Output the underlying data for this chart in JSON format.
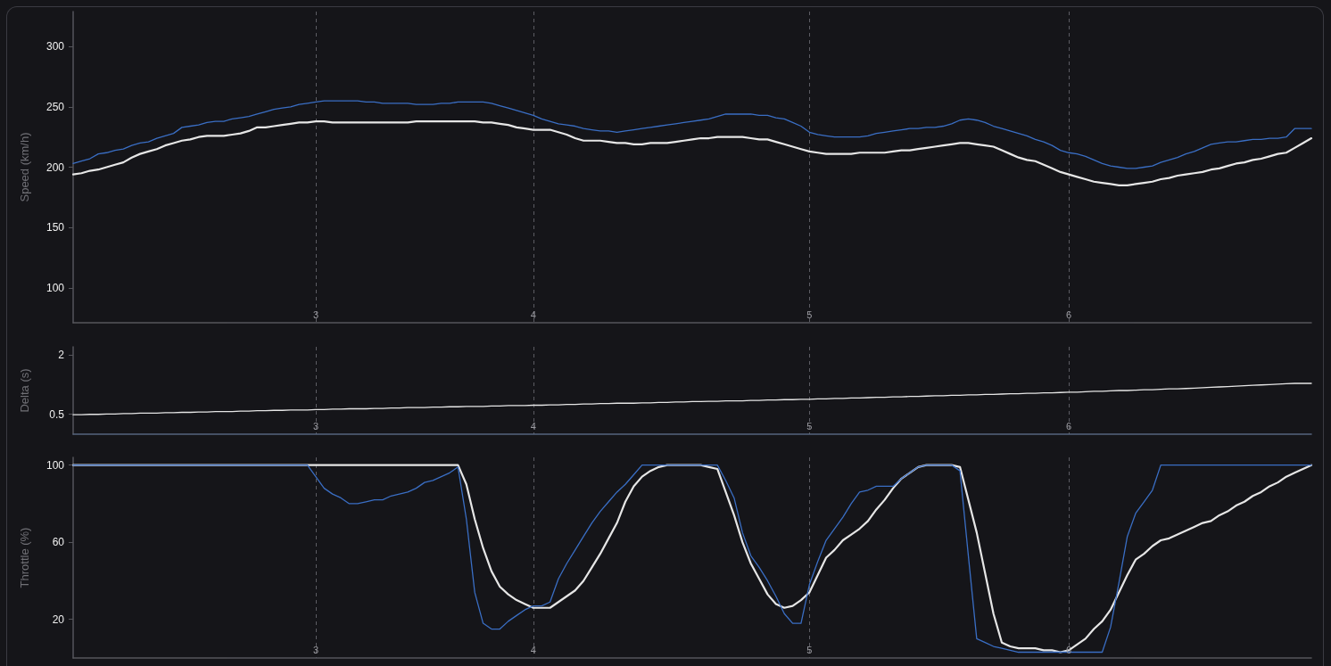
{
  "chart_data": [
    {
      "type": "line",
      "ylabel": "Speed (km/h)",
      "categories": [
        null,
        null,
        null,
        null,
        null,
        null,
        null,
        null,
        null,
        null,
        null,
        null,
        null,
        null,
        null,
        null,
        null,
        null,
        null,
        null,
        null,
        null,
        null,
        null,
        null,
        null,
        null,
        null,
        null,
        "3",
        null,
        null,
        null,
        null,
        null,
        null,
        null,
        null,
        null,
        null,
        null,
        null,
        null,
        null,
        null,
        null,
        null,
        null,
        null,
        null,
        null,
        null,
        null,
        null,
        null,
        "4",
        null,
        null,
        null,
        null,
        null,
        null,
        null,
        null,
        null,
        null,
        null,
        null,
        null,
        null,
        null,
        null,
        null,
        null,
        null,
        null,
        null,
        null,
        null,
        null,
        null,
        null,
        null,
        null,
        null,
        null,
        null,
        null,
        "5",
        null,
        null,
        null,
        null,
        null,
        null,
        null,
        null,
        null,
        null,
        null,
        null,
        null,
        null,
        null,
        null,
        null,
        null,
        null,
        null,
        null,
        null,
        null,
        null,
        null,
        null,
        null,
        null,
        null,
        null,
        "6",
        null,
        null,
        null,
        null,
        null,
        null,
        null,
        null,
        null,
        null,
        null,
        null,
        null,
        null,
        null,
        null,
        null,
        null,
        null,
        null,
        null,
        null,
        null,
        null,
        null,
        null,
        null,
        null,
        null
      ],
      "series": [
        {
          "color": "#3a6ec4",
          "values": [
            203,
            205,
            207,
            211,
            212,
            214,
            215,
            218,
            220,
            221,
            224,
            226,
            228,
            233,
            234,
            235,
            237,
            238,
            238,
            240,
            241,
            242,
            244,
            246,
            248,
            249,
            250,
            252,
            253,
            254,
            255,
            255,
            255,
            255,
            255,
            254,
            254,
            253,
            253,
            253,
            253,
            252,
            252,
            252,
            253,
            253,
            254,
            254,
            254,
            254,
            253,
            251,
            249,
            247,
            245,
            243,
            240,
            238,
            236,
            235,
            234,
            232,
            231,
            230,
            230,
            229,
            230,
            231,
            232,
            233,
            234,
            235,
            236,
            237,
            238,
            239,
            240,
            242,
            244,
            244,
            244,
            244,
            243,
            243,
            241,
            240,
            237,
            234,
            229,
            227,
            226,
            225,
            225,
            225,
            225,
            226,
            228,
            229,
            230,
            231,
            232,
            232,
            233,
            233,
            234,
            236,
            239,
            240,
            239,
            237,
            234,
            232,
            230,
            228,
            226,
            223,
            221,
            218,
            214,
            212,
            211,
            209,
            206,
            203,
            201,
            200,
            199,
            199,
            200,
            201,
            204,
            206,
            208,
            211,
            213,
            216,
            219,
            220,
            221,
            221,
            222,
            223,
            223,
            224,
            224,
            225,
            232,
            232,
            232
          ]
        },
        {
          "color": "#e6e6e6",
          "values": [
            194,
            195,
            197,
            198,
            200,
            202,
            204,
            208,
            211,
            213,
            215,
            218,
            220,
            222,
            223,
            225,
            226,
            226,
            226,
            227,
            228,
            230,
            233,
            233,
            234,
            235,
            236,
            237,
            237,
            238,
            238,
            237,
            237,
            237,
            237,
            237,
            237,
            237,
            237,
            237,
            237,
            238,
            238,
            238,
            238,
            238,
            238,
            238,
            238,
            237,
            237,
            236,
            235,
            233,
            232,
            231,
            231,
            231,
            229,
            227,
            224,
            222,
            222,
            222,
            221,
            220,
            220,
            219,
            219,
            220,
            220,
            220,
            221,
            222,
            223,
            224,
            224,
            225,
            225,
            225,
            225,
            224,
            223,
            223,
            221,
            219,
            217,
            215,
            213,
            212,
            211,
            211,
            211,
            211,
            212,
            212,
            212,
            212,
            213,
            214,
            214,
            215,
            216,
            217,
            218,
            219,
            220,
            220,
            219,
            218,
            217,
            214,
            211,
            208,
            206,
            205,
            202,
            199,
            196,
            194,
            192,
            190,
            188,
            187,
            186,
            185,
            185,
            186,
            187,
            188,
            190,
            191,
            193,
            194,
            195,
            196,
            198,
            199,
            201,
            203,
            204,
            206,
            207,
            209,
            211,
            212,
            216,
            220,
            224
          ]
        }
      ],
      "ylim": [
        71,
        329
      ],
      "yticks": [
        100,
        150,
        200,
        250,
        300
      ],
      "grid": "x"
    },
    {
      "type": "line",
      "ylabel": "Delta (s)",
      "categories": [
        null,
        null,
        null,
        null,
        null,
        null,
        null,
        null,
        null,
        null,
        null,
        null,
        null,
        null,
        null,
        null,
        null,
        null,
        null,
        null,
        null,
        null,
        null,
        null,
        null,
        null,
        null,
        null,
        null,
        "3",
        null,
        null,
        null,
        null,
        null,
        null,
        null,
        null,
        null,
        null,
        null,
        null,
        null,
        null,
        null,
        null,
        null,
        null,
        null,
        null,
        null,
        null,
        null,
        null,
        null,
        "4",
        null,
        null,
        null,
        null,
        null,
        null,
        null,
        null,
        null,
        null,
        null,
        null,
        null,
        null,
        null,
        null,
        null,
        null,
        null,
        null,
        null,
        null,
        null,
        null,
        null,
        null,
        null,
        null,
        null,
        null,
        null,
        null,
        "5",
        null,
        null,
        null,
        null,
        null,
        null,
        null,
        null,
        null,
        null,
        null,
        null,
        null,
        null,
        null,
        null,
        null,
        null,
        null,
        null,
        null,
        null,
        null,
        null,
        null,
        null,
        null,
        null,
        null,
        null,
        "6",
        null,
        null,
        null,
        null,
        null,
        null,
        null,
        null,
        null,
        null,
        null,
        null,
        null,
        null,
        null,
        null,
        null,
        null,
        null,
        null,
        null,
        null,
        null,
        null,
        null,
        null,
        null,
        null,
        null
      ],
      "series": [
        {
          "color": "#e6e6e6",
          "values": [
            0.49,
            0.49,
            0.5,
            0.5,
            0.51,
            0.51,
            0.52,
            0.52,
            0.53,
            0.53,
            0.53,
            0.54,
            0.54,
            0.55,
            0.55,
            0.56,
            0.56,
            0.57,
            0.57,
            0.57,
            0.58,
            0.58,
            0.59,
            0.59,
            0.6,
            0.6,
            0.61,
            0.61,
            0.61,
            0.62,
            0.62,
            0.63,
            0.63,
            0.64,
            0.64,
            0.64,
            0.65,
            0.65,
            0.66,
            0.66,
            0.67,
            0.67,
            0.67,
            0.68,
            0.68,
            0.69,
            0.69,
            0.7,
            0.7,
            0.7,
            0.71,
            0.71,
            0.72,
            0.72,
            0.72,
            0.73,
            0.73,
            0.74,
            0.74,
            0.75,
            0.75,
            0.76,
            0.76,
            0.77,
            0.77,
            0.78,
            0.78,
            0.78,
            0.79,
            0.79,
            0.8,
            0.8,
            0.81,
            0.81,
            0.82,
            0.82,
            0.83,
            0.83,
            0.84,
            0.84,
            0.84,
            0.85,
            0.85,
            0.86,
            0.86,
            0.87,
            0.87,
            0.88,
            0.88,
            0.89,
            0.89,
            0.9,
            0.9,
            0.91,
            0.91,
            0.92,
            0.93,
            0.93,
            0.94,
            0.94,
            0.95,
            0.95,
            0.96,
            0.97,
            0.97,
            0.98,
            0.98,
            0.99,
            0.99,
            1.0,
            1.0,
            1.01,
            1.02,
            1.02,
            1.03,
            1.03,
            1.04,
            1.04,
            1.05,
            1.06,
            1.06,
            1.07,
            1.08,
            1.08,
            1.09,
            1.1,
            1.1,
            1.11,
            1.12,
            1.12,
            1.13,
            1.14,
            1.14,
            1.15,
            1.16,
            1.17,
            1.18,
            1.19,
            1.2,
            1.21,
            1.22,
            1.23,
            1.24,
            1.25,
            1.26,
            1.27,
            1.28,
            1.28,
            1.28
          ]
        }
      ],
      "ylim": [
        0,
        2.2
      ],
      "yticks": [
        0.5,
        2
      ],
      "grid": "x"
    },
    {
      "type": "line",
      "ylabel": "Throttle (%)",
      "categories": [
        null,
        null,
        null,
        null,
        null,
        null,
        null,
        null,
        null,
        null,
        null,
        null,
        null,
        null,
        null,
        null,
        null,
        null,
        null,
        null,
        null,
        null,
        null,
        null,
        null,
        null,
        null,
        null,
        null,
        "3",
        null,
        null,
        null,
        null,
        null,
        null,
        null,
        null,
        null,
        null,
        null,
        null,
        null,
        null,
        null,
        null,
        null,
        null,
        null,
        null,
        null,
        null,
        null,
        null,
        null,
        "4",
        null,
        null,
        null,
        null,
        null,
        null,
        null,
        null,
        null,
        null,
        null,
        null,
        null,
        null,
        null,
        null,
        null,
        null,
        null,
        null,
        null,
        null,
        null,
        null,
        null,
        null,
        null,
        null,
        null,
        null,
        null,
        null,
        "5",
        null,
        null,
        null,
        null,
        null,
        null,
        null,
        null,
        null,
        null,
        null,
        null,
        null,
        null,
        null,
        null,
        null,
        null,
        null,
        null,
        null,
        null,
        null,
        null,
        null,
        null,
        null,
        null,
        null,
        null,
        "6",
        null,
        null,
        null,
        null,
        null,
        null,
        null,
        null,
        null,
        null,
        null,
        null,
        null,
        null,
        null,
        null,
        null,
        null,
        null,
        null,
        null,
        null,
        null,
        null,
        null,
        null,
        null,
        null,
        null
      ],
      "series": [
        {
          "color": "#3a6ec4",
          "values": [
            100,
            100,
            100,
            100,
            100,
            100,
            100,
            100,
            100,
            100,
            100,
            100,
            100,
            100,
            100,
            100,
            100,
            100,
            100,
            100,
            100,
            100,
            100,
            100,
            100,
            100,
            100,
            100,
            100,
            94,
            88,
            85,
            83,
            80,
            80,
            81,
            82,
            82,
            84,
            85,
            86,
            88,
            91,
            92,
            94,
            96,
            99,
            72,
            34,
            18,
            15,
            15,
            19,
            22,
            25,
            27,
            27,
            29,
            41,
            49,
            56,
            63,
            70,
            76,
            81,
            86,
            90,
            95,
            100,
            100,
            100,
            100,
            100,
            100,
            100,
            100,
            100,
            100,
            92,
            83,
            65,
            53,
            47,
            40,
            32,
            23,
            18,
            18,
            38,
            50,
            61,
            67,
            73,
            80,
            86,
            87,
            89,
            89,
            89,
            93,
            96,
            99,
            100,
            100,
            100,
            100,
            97,
            53,
            10,
            8,
            6,
            5,
            4,
            3,
            3,
            3,
            3,
            3,
            3,
            3,
            3,
            3,
            3,
            3,
            16,
            39,
            63,
            75,
            81,
            87,
            100,
            100,
            100,
            100,
            100,
            100,
            100,
            100,
            100,
            100,
            100,
            100,
            100,
            100,
            100,
            100,
            100,
            100,
            100
          ]
        },
        {
          "color": "#e6e6e6",
          "values": [
            100,
            100,
            100,
            100,
            100,
            100,
            100,
            100,
            100,
            100,
            100,
            100,
            100,
            100,
            100,
            100,
            100,
            100,
            100,
            100,
            100,
            100,
            100,
            100,
            100,
            100,
            100,
            100,
            100,
            100,
            100,
            100,
            100,
            100,
            100,
            100,
            100,
            100,
            100,
            100,
            100,
            100,
            100,
            100,
            100,
            100,
            100,
            90,
            72,
            57,
            45,
            37,
            33,
            30,
            28,
            26,
            26,
            26,
            29,
            32,
            35,
            40,
            47,
            54,
            62,
            70,
            81,
            89,
            94,
            97,
            99,
            100,
            100,
            100,
            100,
            100,
            99,
            98,
            86,
            74,
            60,
            49,
            41,
            33,
            28,
            26,
            27,
            30,
            34,
            43,
            52,
            56,
            61,
            64,
            67,
            71,
            77,
            82,
            88,
            93,
            96,
            99,
            100,
            100,
            100,
            100,
            99,
            82,
            65,
            44,
            23,
            8,
            6,
            5,
            5,
            5,
            4,
            4,
            3,
            4,
            7,
            10,
            15,
            19,
            25,
            34,
            43,
            51,
            54,
            58,
            61,
            62,
            64,
            66,
            68,
            70,
            71,
            74,
            76,
            79,
            81,
            84,
            86,
            89,
            91,
            94,
            96,
            98,
            100
          ]
        }
      ],
      "ylim": [
        0,
        104
      ],
      "yticks": [
        20,
        60,
        100
      ],
      "grid": "x"
    }
  ]
}
